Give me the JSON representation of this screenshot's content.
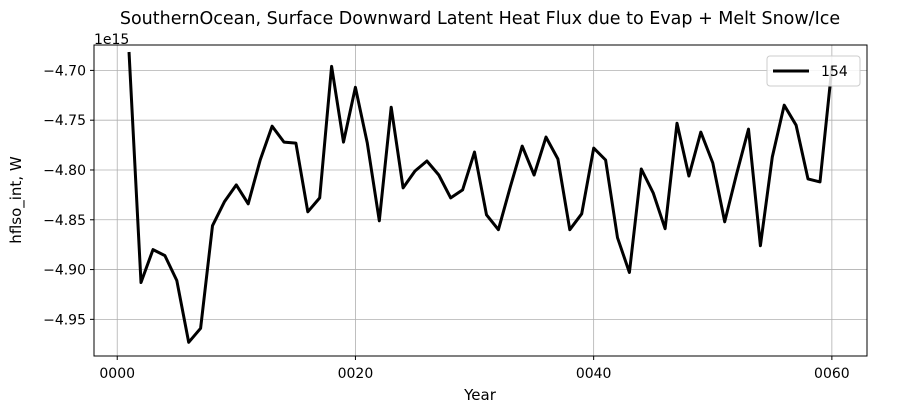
{
  "chart_data": {
    "type": "line",
    "title": "SouthernOcean, Surface Downward Latent Heat Flux due to Evap + Melt Snow/Ice",
    "xlabel": "Year",
    "ylabel": "hflso_int, W",
    "offset_text": "1e15",
    "xlim": [
      -1.95,
      62.95
    ],
    "ylim": [
      -4.9868,
      -4.6745
    ],
    "x_ticks": [
      {
        "value": 0,
        "label": "0000"
      },
      {
        "value": 20,
        "label": "0020"
      },
      {
        "value": 40,
        "label": "0040"
      },
      {
        "value": 60,
        "label": "0060"
      }
    ],
    "y_ticks": [
      {
        "value": -4.95,
        "label": "−4.95"
      },
      {
        "value": -4.9,
        "label": "−4.90"
      },
      {
        "value": -4.85,
        "label": "−4.85"
      },
      {
        "value": -4.8,
        "label": "−4.80"
      },
      {
        "value": -4.75,
        "label": "−4.75"
      },
      {
        "value": -4.7,
        "label": "−4.70"
      }
    ],
    "grid": true,
    "legend_position": "top-right",
    "line_color": "#000000",
    "series": [
      {
        "name": "154",
        "x": [
          1,
          2,
          3,
          4,
          5,
          6,
          7,
          8,
          9,
          10,
          11,
          12,
          13,
          14,
          15,
          16,
          17,
          18,
          19,
          20,
          21,
          22,
          23,
          24,
          25,
          26,
          27,
          28,
          29,
          30,
          31,
          32,
          33,
          34,
          35,
          36,
          37,
          38,
          39,
          40,
          41,
          42,
          43,
          44,
          45,
          46,
          47,
          48,
          49,
          50,
          51,
          52,
          53,
          54,
          55,
          56,
          57,
          58,
          59,
          60
        ],
        "values": [
          -4.683,
          -4.913,
          -4.88,
          -4.886,
          -4.911,
          -4.973,
          -4.959,
          -4.856,
          -4.832,
          -4.815,
          -4.834,
          -4.79,
          -4.756,
          -4.772,
          -4.773,
          -4.842,
          -4.828,
          -4.696,
          -4.772,
          -4.717,
          -4.773,
          -4.851,
          -4.737,
          -4.818,
          -4.801,
          -4.791,
          -4.805,
          -4.828,
          -4.82,
          -4.782,
          -4.845,
          -4.86,
          -4.817,
          -4.776,
          -4.805,
          -4.767,
          -4.789,
          -4.86,
          -4.844,
          -4.778,
          -4.79,
          -4.868,
          -4.903,
          -4.799,
          -4.823,
          -4.859,
          -4.753,
          -4.806,
          -4.762,
          -4.793,
          -4.852,
          -4.804,
          -4.759,
          -4.876,
          -4.787,
          -4.735,
          -4.755,
          -4.809,
          -4.812,
          -4.697
        ]
      }
    ]
  }
}
